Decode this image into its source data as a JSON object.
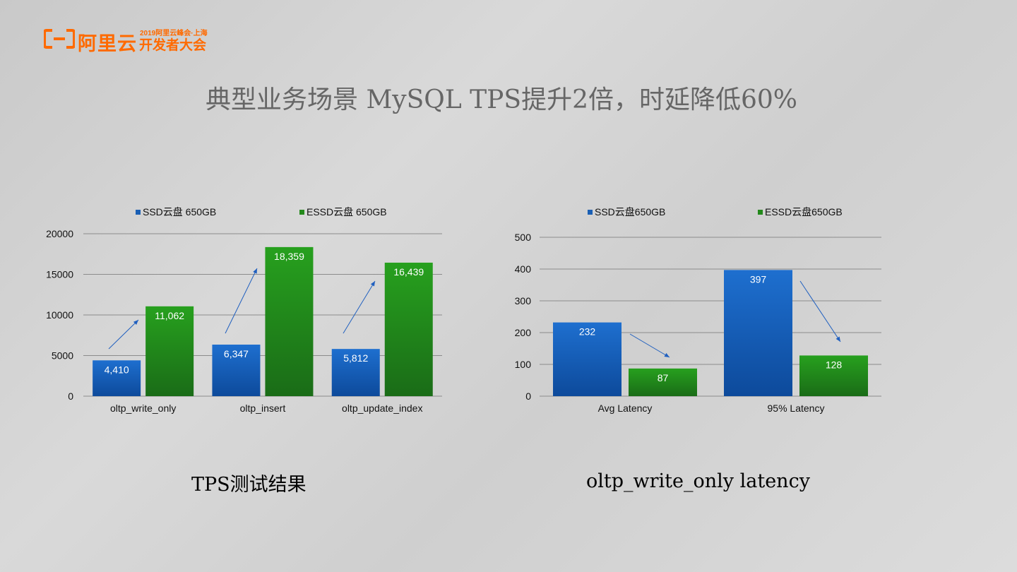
{
  "header": {
    "brand": "阿里云",
    "event_small": "2019阿里云峰会·上海",
    "event": "开发者大会"
  },
  "title": "典型业务场景 MySQL TPS提升2倍，时延降低60%",
  "colors": {
    "ssd": "#1a5fb4",
    "essd": "#23891b",
    "arrow": "#1f5fbf",
    "grid": "#8c8c8c"
  },
  "chart_data": [
    {
      "type": "bar",
      "categories": [
        "oltp_write_only",
        "oltp_insert",
        "oltp_update_index"
      ],
      "series": [
        {
          "name": "SSD云盘 650GB",
          "values": [
            4410,
            6347,
            5812
          ],
          "labels": [
            "4,410",
            "6,347",
            "5,812"
          ]
        },
        {
          "name": "ESSD云盘 650GB",
          "values": [
            11062,
            18359,
            16439
          ],
          "labels": [
            "11,062",
            "18,359",
            "16,439"
          ]
        }
      ],
      "ylim": [
        0,
        20000
      ],
      "yticks": [
        "0",
        "5000",
        "10000",
        "15000",
        "20000"
      ],
      "grid": true,
      "legend": "top",
      "caption": "TPS测试结果"
    },
    {
      "type": "bar",
      "categories": [
        "Avg Latency",
        "95% Latency"
      ],
      "series": [
        {
          "name": "SSD云盘650GB",
          "values": [
            232,
            397
          ],
          "labels": [
            "232",
            "397"
          ]
        },
        {
          "name": "ESSD云盘650GB",
          "values": [
            87,
            128
          ],
          "labels": [
            "87",
            "128"
          ]
        }
      ],
      "ylim": [
        0,
        500
      ],
      "yticks": [
        "0",
        "100",
        "200",
        "300",
        "400",
        "500"
      ],
      "grid": true,
      "legend": "top",
      "caption": "oltp_write_only  latency"
    }
  ]
}
